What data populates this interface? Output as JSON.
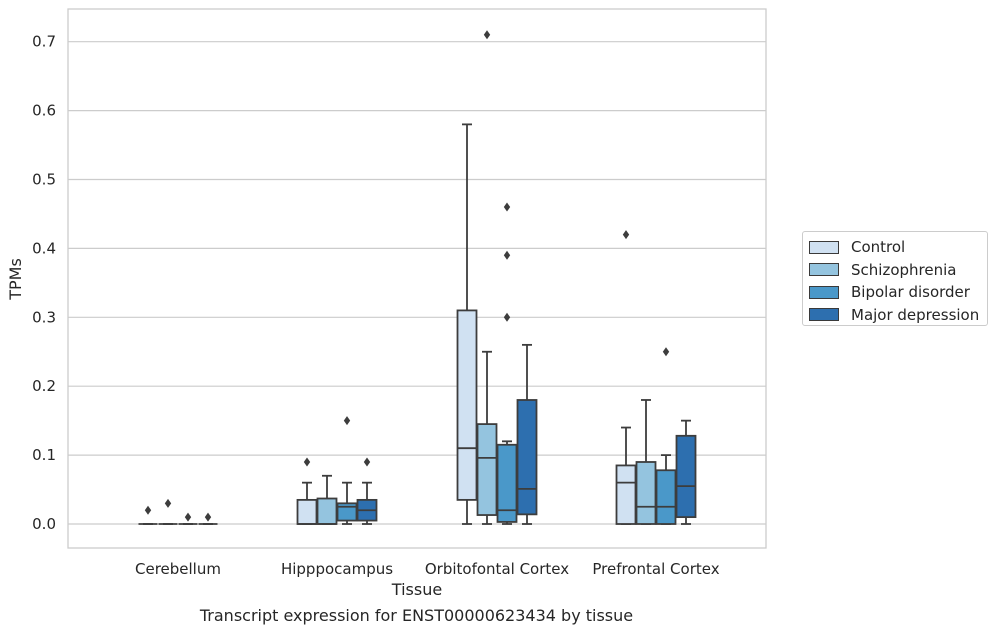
{
  "chart_data": {
    "type": "box",
    "title": "",
    "caption": "Transcript expression for ENST00000623434 by tissue",
    "xlabel": "Tissue",
    "ylabel": "TPMs",
    "ylim": [
      -0.035,
      0.75
    ],
    "yticks": [
      0.0,
      0.1,
      0.2,
      0.3,
      0.4,
      0.5,
      0.6,
      0.7
    ],
    "ytick_labels": [
      "0.0",
      "0.1",
      "0.2",
      "0.3",
      "0.4",
      "0.5",
      "0.6",
      "0.7"
    ],
    "grid": "horizontal",
    "legend_position": "right",
    "categories": [
      "Cerebellum",
      "Hipppocampus",
      "Orbitofontal Cortex",
      "Prefrontal Cortex"
    ],
    "series": [
      {
        "name": "Control",
        "color": "#d0e1f2",
        "boxes": [
          {
            "whislo": 0.0,
            "q1": 0.0,
            "med": 0.0,
            "q3": 0.0,
            "whishi": 0.0,
            "fliers": [
              0.02
            ]
          },
          {
            "whislo": 0.0,
            "q1": 0.0,
            "med": 0.0,
            "q3": 0.035,
            "whishi": 0.06,
            "fliers": [
              0.09
            ]
          },
          {
            "whislo": 0.0,
            "q1": 0.035,
            "med": 0.11,
            "q3": 0.31,
            "whishi": 0.58,
            "fliers": []
          },
          {
            "whislo": 0.0,
            "q1": 0.0,
            "med": 0.06,
            "q3": 0.085,
            "whishi": 0.14,
            "fliers": [
              0.42
            ]
          }
        ]
      },
      {
        "name": "Schizophrenia",
        "color": "#94c4df",
        "boxes": [
          {
            "whislo": 0.0,
            "q1": 0.0,
            "med": 0.0,
            "q3": 0.0,
            "whishi": 0.0,
            "fliers": [
              0.03
            ]
          },
          {
            "whislo": 0.0,
            "q1": 0.0,
            "med": 0.0,
            "q3": 0.037,
            "whishi": 0.07,
            "fliers": []
          },
          {
            "whislo": 0.0,
            "q1": 0.013,
            "med": 0.096,
            "q3": 0.145,
            "whishi": 0.25,
            "fliers": [
              0.71
            ]
          },
          {
            "whislo": 0.0,
            "q1": 0.0,
            "med": 0.025,
            "q3": 0.09,
            "whishi": 0.18,
            "fliers": []
          }
        ]
      },
      {
        "name": "Bipolar disorder",
        "color": "#4a98c9",
        "boxes": [
          {
            "whislo": 0.0,
            "q1": 0.0,
            "med": 0.0,
            "q3": 0.0,
            "whishi": 0.0,
            "fliers": [
              0.01
            ]
          },
          {
            "whislo": 0.0,
            "q1": 0.005,
            "med": 0.025,
            "q3": 0.03,
            "whishi": 0.06,
            "fliers": [
              0.15
            ]
          },
          {
            "whislo": 0.0,
            "q1": 0.003,
            "med": 0.02,
            "q3": 0.115,
            "whishi": 0.12,
            "fliers": [
              0.3,
              0.39,
              0.46
            ]
          },
          {
            "whislo": 0.0,
            "q1": 0.0,
            "med": 0.025,
            "q3": 0.078,
            "whishi": 0.1,
            "fliers": [
              0.25
            ]
          }
        ]
      },
      {
        "name": "Major depression",
        "color": "#2d6faf",
        "boxes": [
          {
            "whislo": 0.0,
            "q1": 0.0,
            "med": 0.0,
            "q3": 0.0,
            "whishi": 0.0,
            "fliers": [
              0.01
            ]
          },
          {
            "whislo": 0.0,
            "q1": 0.005,
            "med": 0.02,
            "q3": 0.035,
            "whishi": 0.06,
            "fliers": [
              0.09
            ]
          },
          {
            "whislo": 0.0,
            "q1": 0.014,
            "med": 0.051,
            "q3": 0.18,
            "whishi": 0.26,
            "fliers": []
          },
          {
            "whislo": 0.0,
            "q1": 0.01,
            "med": 0.055,
            "q3": 0.128,
            "whishi": 0.15,
            "fliers": []
          }
        ]
      }
    ]
  }
}
